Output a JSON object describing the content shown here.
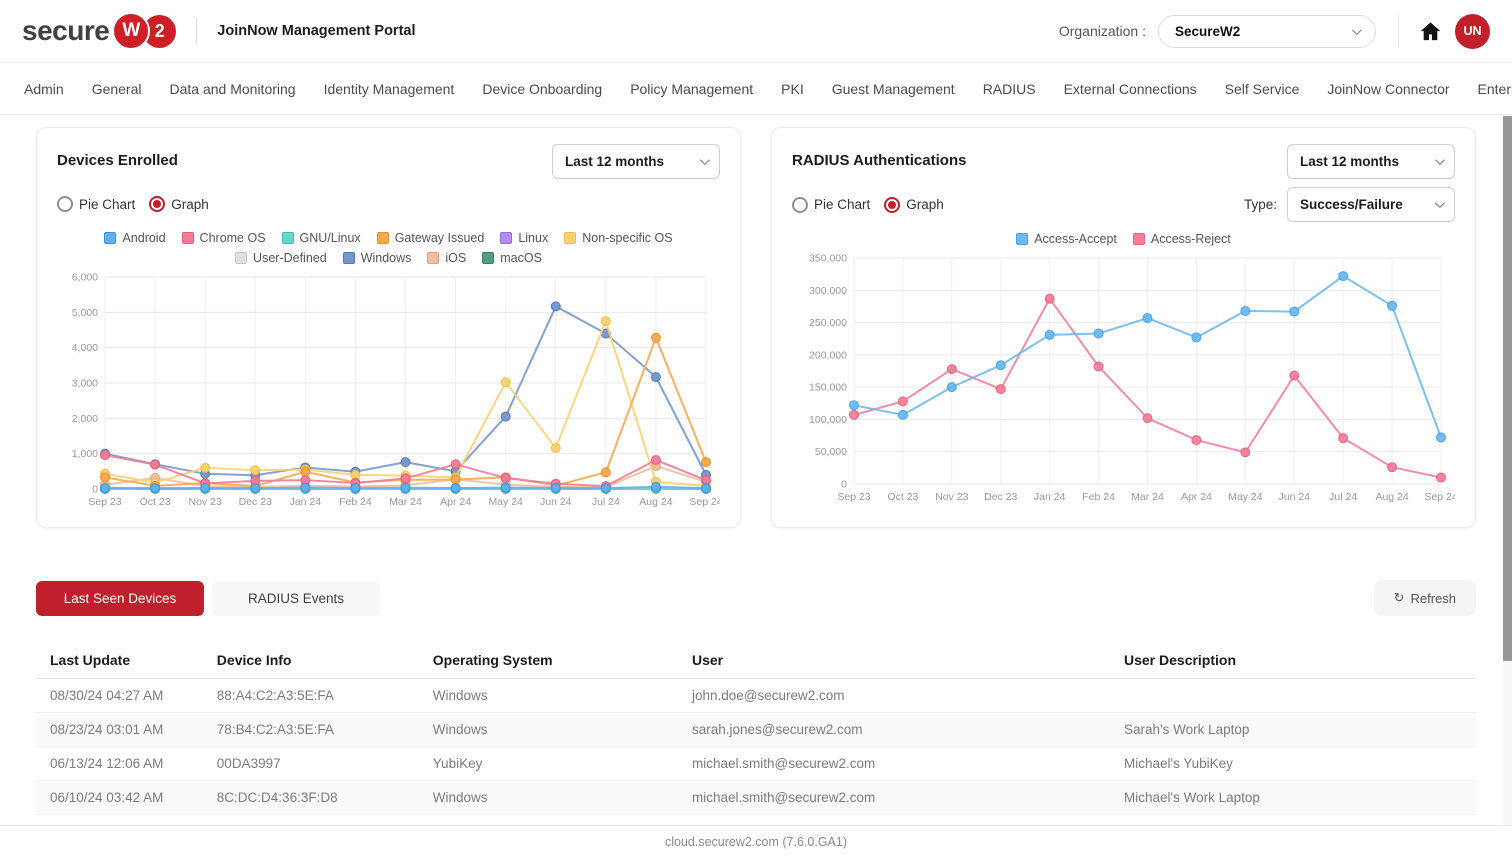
{
  "header": {
    "logo_text": "secure",
    "logo_w": "W",
    "logo_2": "2",
    "portal_title": "JoinNow Management Portal",
    "organization_label": "Organization :",
    "organization_value": "SecureW2",
    "avatar_initials": "UN"
  },
  "nav": {
    "items": [
      "Admin",
      "General",
      "Data and Monitoring",
      "Identity Management",
      "Device Onboarding",
      "Policy Management",
      "PKI",
      "Guest Management",
      "RADIUS",
      "External Connections",
      "Self Service",
      "JoinNow Connector",
      "Enterprise Client"
    ]
  },
  "cards": {
    "devices": {
      "title": "Devices Enrolled",
      "range_value": "Last 12 months",
      "radio_pie": "Pie Chart",
      "radio_graph": "Graph"
    },
    "radius": {
      "title": "RADIUS Authentications",
      "range_value": "Last 12 months",
      "radio_pie": "Pie Chart",
      "radio_graph": "Graph",
      "type_label": "Type:",
      "type_value": "Success/Failure"
    }
  },
  "chart_data": [
    {
      "type": "line",
      "title": "Devices Enrolled",
      "categories": [
        "Sep 23",
        "Oct 23",
        "Nov 23",
        "Dec 23",
        "Jan 24",
        "Feb 24",
        "Mar 24",
        "Apr 24",
        "May 24",
        "Jun 24",
        "Jul 24",
        "Aug 24",
        "Sep 24"
      ],
      "ylim": [
        0,
        6000
      ],
      "ytick_step": 1000,
      "grid": true,
      "legend_position": "top",
      "series": [
        {
          "name": "Android",
          "color": "#5FB0EC",
          "border": "#3C96DD",
          "values": [
            30,
            25,
            30,
            25,
            40,
            30,
            35,
            30,
            40,
            30,
            25,
            60,
            25
          ]
        },
        {
          "name": "Chrome OS",
          "color": "#F27C97",
          "border": "#E85D7E",
          "values": [
            960,
            690,
            160,
            230,
            250,
            170,
            300,
            700,
            310,
            150,
            80,
            820,
            250
          ]
        },
        {
          "name": "GNU/Linux",
          "color": "#66D7C6",
          "border": "#3FBFAC",
          "values": [
            5,
            5,
            5,
            5,
            8,
            5,
            5,
            8,
            10,
            5,
            5,
            10,
            5
          ]
        },
        {
          "name": "Gateway Issued",
          "color": "#F7A94E",
          "border": "#EE8F27",
          "values": [
            330,
            90,
            170,
            80,
            490,
            180,
            260,
            270,
            330,
            100,
            470,
            4280,
            760
          ]
        },
        {
          "name": "Linux",
          "color": "#B18CEF",
          "border": "#976FE3",
          "values": [
            5,
            5,
            5,
            5,
            5,
            5,
            5,
            5,
            5,
            5,
            5,
            8,
            5
          ]
        },
        {
          "name": "Non-specific OS",
          "color": "#F8D271",
          "border": "#EFBE45",
          "values": [
            430,
            180,
            600,
            530,
            550,
            400,
            380,
            330,
            3020,
            1160,
            4750,
            200,
            90
          ]
        },
        {
          "name": "User-Defined",
          "color": "#E0E0E0",
          "border": "#C6C6C6",
          "values": [
            8,
            5,
            5,
            5,
            5,
            5,
            5,
            5,
            5,
            5,
            5,
            5,
            5
          ]
        },
        {
          "name": "Windows",
          "color": "#7497D0",
          "border": "#5479BC",
          "values": [
            1000,
            700,
            430,
            390,
            610,
            490,
            760,
            500,
            2050,
            5170,
            4400,
            3170,
            400
          ]
        },
        {
          "name": "iOS",
          "color": "#F2BC9E",
          "border": "#E5A07D",
          "values": [
            120,
            310,
            80,
            60,
            90,
            70,
            100,
            280,
            120,
            60,
            50,
            650,
            200
          ]
        },
        {
          "name": "macOS",
          "color": "#4E9D87",
          "border": "#37826E",
          "values": [
            5,
            5,
            5,
            5,
            5,
            5,
            5,
            5,
            5,
            5,
            5,
            5,
            5
          ]
        }
      ]
    },
    {
      "type": "line",
      "title": "RADIUS Authentications",
      "categories": [
        "Sep 23",
        "Oct 23",
        "Nov 23",
        "Dec 23",
        "Jan 24",
        "Feb 24",
        "Mar 24",
        "Apr 24",
        "May 24",
        "Jun 24",
        "Jul 24",
        "Aug 24",
        "Sep 24"
      ],
      "ylim": [
        0,
        350000
      ],
      "ytick_step": 50000,
      "grid": true,
      "legend_position": "top",
      "series": [
        {
          "name": "Access-Accept",
          "color": "#6EB9F0",
          "border": "#4AA3E8",
          "values": [
            122000,
            107000,
            150000,
            184000,
            231000,
            233000,
            257000,
            227000,
            268000,
            267000,
            322000,
            276000,
            72000
          ]
        },
        {
          "name": "Access-Reject",
          "color": "#F5809A",
          "border": "#EE6384",
          "values": [
            107000,
            128000,
            178000,
            147000,
            287000,
            182000,
            102000,
            68000,
            49000,
            168000,
            71000,
            26000,
            10000
          ]
        }
      ]
    }
  ],
  "bottom": {
    "tabs": [
      {
        "label": "Last Seen Devices",
        "active": true
      },
      {
        "label": "RADIUS Events",
        "active": false
      }
    ],
    "refresh_label": "Refresh",
    "refresh_icon": "↻",
    "table": {
      "columns": [
        "Last Update",
        "Device Info",
        "Operating System",
        "User",
        "User Description"
      ],
      "rows": [
        [
          "08/30/24 04:27 AM",
          "88:A4:C2:A3:5E:FA",
          "Windows",
          "john.doe@securew2.com",
          ""
        ],
        [
          "08/23/24 03:01 AM",
          "78:B4:C2:A3:5E:FA",
          "Windows",
          "sarah.jones@securew2.com",
          "Sarah's Work Laptop"
        ],
        [
          "06/13/24 12:06 AM",
          "00DA3997",
          "YubiKey",
          "michael.smith@securew2.com",
          "Michael's YubiKey"
        ],
        [
          "06/10/24 03:42 AM",
          "8C:DC:D4:36:3F:D8",
          "Windows",
          "michael.smith@securew2.com",
          "Michael's Work Laptop"
        ]
      ]
    }
  },
  "footer": {
    "text": "cloud.securew2.com (7.6.0.GA1)"
  },
  "colors": {
    "brand_red": "#C21F2B",
    "accept_blue": "#6EB9F0",
    "reject_pink": "#F5809A"
  }
}
